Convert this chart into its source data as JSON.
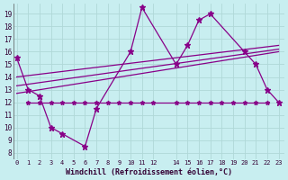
{
  "xlabel": "Windchill (Refroidissement éolien,°C)",
  "bg_color": "#c8eef0",
  "grid_color": "#b0d8d8",
  "line_color": "#880088",
  "x_ticks": [
    0,
    1,
    2,
    3,
    4,
    5,
    6,
    7,
    8,
    9,
    10,
    11,
    12,
    14,
    15,
    16,
    17,
    18,
    19,
    20,
    21,
    22,
    23
  ],
  "y_ticks": [
    8,
    9,
    10,
    11,
    12,
    13,
    14,
    15,
    16,
    17,
    18,
    19
  ],
  "xlim": [
    -0.3,
    23.5
  ],
  "ylim": [
    7.5,
    19.8
  ],
  "zigzag_x": [
    0,
    1,
    2,
    3,
    4,
    6,
    7,
    10,
    11,
    14,
    15,
    16,
    17,
    20,
    21,
    22,
    23
  ],
  "zigzag_y": [
    15.5,
    13.0,
    12.5,
    10.0,
    9.5,
    8.5,
    11.5,
    16.0,
    19.5,
    15.0,
    16.5,
    18.5,
    19.0,
    16.0,
    15.0,
    13.0,
    12.0
  ],
  "flat_x": [
    1,
    2,
    3,
    4,
    5,
    6,
    7,
    8,
    9,
    10,
    11,
    12,
    14,
    15,
    16,
    17,
    18,
    19,
    20,
    21,
    22
  ],
  "flat_y": [
    12.0,
    12.0,
    12.0,
    12.0,
    12.0,
    12.0,
    12.0,
    12.0,
    12.0,
    12.0,
    12.0,
    12.0,
    12.0,
    12.0,
    12.0,
    12.0,
    12.0,
    12.0,
    12.0,
    12.0,
    12.0
  ],
  "trend_lines": [
    {
      "x0": 0,
      "y0": 14.0,
      "x1": 23,
      "y1": 16.5
    },
    {
      "x0": 0,
      "y0": 13.3,
      "x1": 23,
      "y1": 16.2
    },
    {
      "x0": 0,
      "y0": 12.7,
      "x1": 23,
      "y1": 16.0
    }
  ]
}
